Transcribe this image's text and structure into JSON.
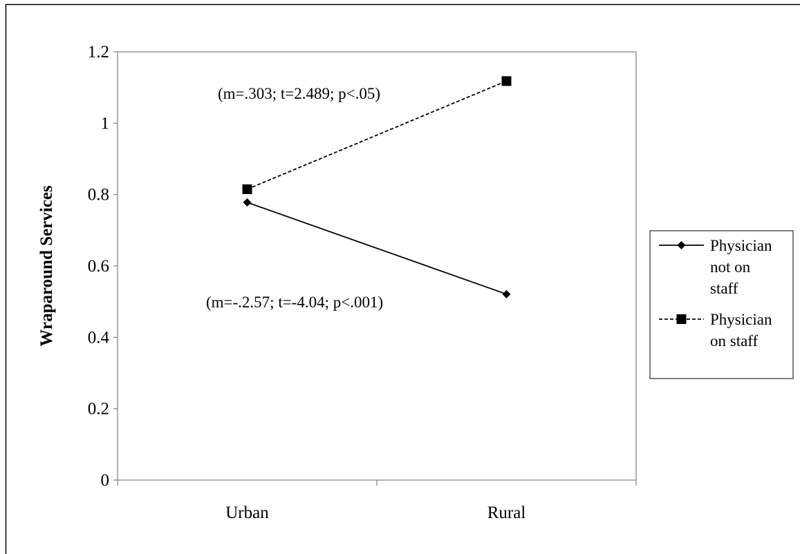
{
  "chart_data": {
    "type": "line",
    "title": "",
    "xlabel": "",
    "ylabel": "Wraparound Services",
    "categories": [
      "Urban",
      "Rural"
    ],
    "ylim": [
      0,
      1.2
    ],
    "yticks": [
      "0",
      "0.2",
      "0.4",
      "0.6",
      "0.8",
      "1",
      "1.2"
    ],
    "grid": false,
    "legend_position": "right",
    "series": [
      {
        "name": "Physician not on staff",
        "legend_lines": [
          "Physician",
          "not on",
          "staff"
        ],
        "values": [
          0.778,
          0.521
        ],
        "line_style": "solid",
        "marker": "diamond",
        "color": "#000000"
      },
      {
        "name": "Physician on staff",
        "legend_lines": [
          "Physician",
          "on staff"
        ],
        "values": [
          0.815,
          1.118
        ],
        "line_style": "dashed",
        "marker": "square",
        "color": "#000000"
      }
    ],
    "annotations": [
      {
        "text": "(m=.303; t=2.489; p<.05)",
        "series": "Physician on staff"
      },
      {
        "text": "(m=-.2.57; t=-4.04; p<.001)",
        "series": "Physician not on staff"
      }
    ]
  }
}
